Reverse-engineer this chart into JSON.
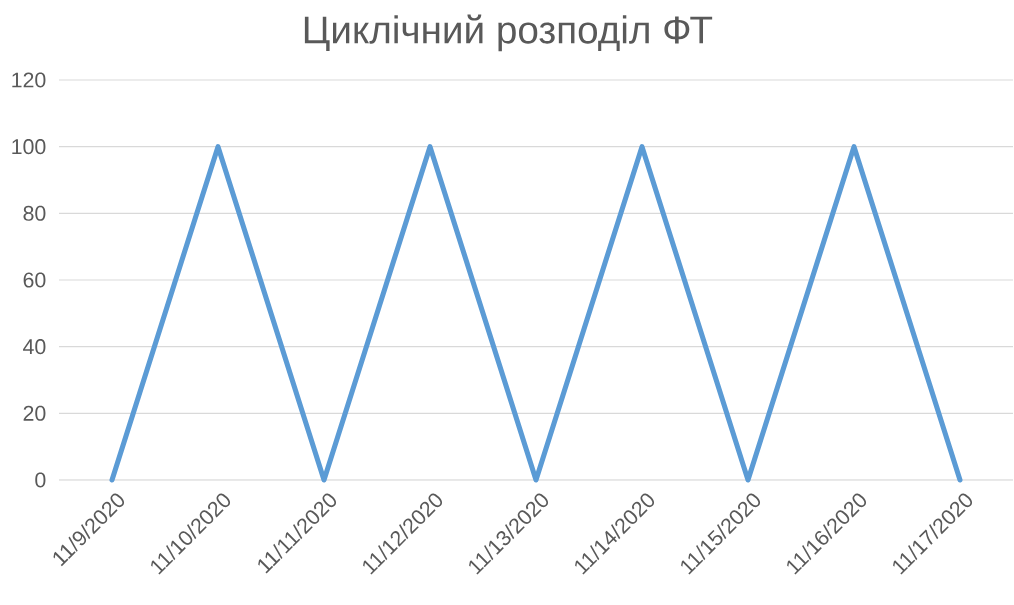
{
  "chart_data": {
    "type": "line",
    "title": "Циклічний розподіл ФТ",
    "categories": [
      "11/9/2020",
      "11/10/2020",
      "11/11/2020",
      "11/12/2020",
      "11/13/2020",
      "11/14/2020",
      "11/15/2020",
      "11/16/2020",
      "11/17/2020"
    ],
    "series": [
      {
        "color": "#5b9bd5",
        "values": [
          0,
          100,
          0,
          100,
          0,
          100,
          0,
          100,
          0
        ]
      }
    ],
    "ylim": [
      0,
      120
    ],
    "yticks": [
      0,
      20,
      40,
      60,
      80,
      100,
      120
    ],
    "grid": "y",
    "marker": "none",
    "line_style": "solid"
  }
}
